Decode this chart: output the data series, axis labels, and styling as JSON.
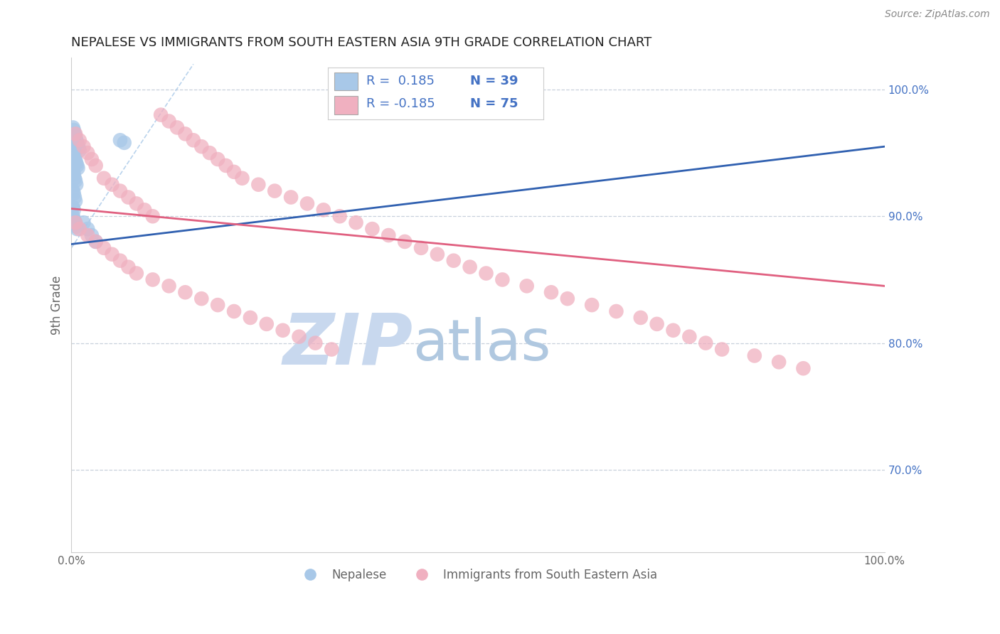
{
  "title": "NEPALESE VS IMMIGRANTS FROM SOUTH EASTERN ASIA 9TH GRADE CORRELATION CHART",
  "source_text": "Source: ZipAtlas.com",
  "ylabel": "9th Grade",
  "watermark_zip": "ZIP",
  "watermark_atlas": "atlas",
  "blue_color": "#a8c8e8",
  "blue_line_color": "#3060b0",
  "pink_color": "#f0b0c0",
  "pink_line_color": "#e06080",
  "dashed_line_color": "#c8d0dc",
  "right_axis_color": "#4472c4",
  "tick_label_color": "#666666",
  "axis_label_color": "#666666",
  "title_color": "#222222",
  "source_color": "#888888",
  "watermark_zip_color": "#c8d8ee",
  "watermark_atlas_color": "#b0c8e0",
  "xlim": [
    0.0,
    1.0
  ],
  "ylim": [
    0.635,
    1.025
  ],
  "dashed_line_y": [
    1.0,
    0.9,
    0.8,
    0.7
  ],
  "blue_line_x0": 0.0,
  "blue_line_x1": 1.0,
  "blue_line_y0": 0.878,
  "blue_line_y1": 0.955,
  "pink_line_x0": 0.0,
  "pink_line_x1": 1.0,
  "pink_line_y0": 0.906,
  "pink_line_y1": 0.845,
  "blue_scatter_x": [
    0.002,
    0.003,
    0.004,
    0.005,
    0.006,
    0.007,
    0.008,
    0.009,
    0.01,
    0.002,
    0.003,
    0.004,
    0.005,
    0.006,
    0.007,
    0.008,
    0.002,
    0.003,
    0.004,
    0.005,
    0.006,
    0.002,
    0.003,
    0.004,
    0.005,
    0.002,
    0.003,
    0.015,
    0.02,
    0.025,
    0.03,
    0.06,
    0.065,
    0.002,
    0.003,
    0.004,
    0.005,
    0.006,
    0.007
  ],
  "blue_scatter_y": [
    0.97,
    0.968,
    0.965,
    0.963,
    0.96,
    0.958,
    0.956,
    0.954,
    0.952,
    0.95,
    0.948,
    0.946,
    0.944,
    0.942,
    0.94,
    0.938,
    0.935,
    0.933,
    0.93,
    0.928,
    0.925,
    0.92,
    0.918,
    0.915,
    0.912,
    0.907,
    0.905,
    0.895,
    0.89,
    0.885,
    0.88,
    0.96,
    0.958,
    0.9,
    0.898,
    0.896,
    0.894,
    0.892,
    0.89
  ],
  "pink_scatter_x": [
    0.005,
    0.01,
    0.015,
    0.02,
    0.025,
    0.03,
    0.04,
    0.05,
    0.06,
    0.07,
    0.08,
    0.09,
    0.1,
    0.11,
    0.12,
    0.13,
    0.14,
    0.15,
    0.16,
    0.17,
    0.18,
    0.19,
    0.2,
    0.21,
    0.23,
    0.25,
    0.27,
    0.29,
    0.31,
    0.33,
    0.35,
    0.37,
    0.39,
    0.41,
    0.43,
    0.45,
    0.47,
    0.49,
    0.51,
    0.53,
    0.56,
    0.59,
    0.61,
    0.64,
    0.67,
    0.7,
    0.72,
    0.74,
    0.76,
    0.78,
    0.8,
    0.84,
    0.87,
    0.9,
    0.005,
    0.01,
    0.02,
    0.03,
    0.04,
    0.05,
    0.06,
    0.07,
    0.08,
    0.1,
    0.12,
    0.14,
    0.16,
    0.18,
    0.2,
    0.22,
    0.24,
    0.26,
    0.28,
    0.3,
    0.32
  ],
  "pink_scatter_y": [
    0.965,
    0.96,
    0.955,
    0.95,
    0.945,
    0.94,
    0.93,
    0.925,
    0.92,
    0.915,
    0.91,
    0.905,
    0.9,
    0.98,
    0.975,
    0.97,
    0.965,
    0.96,
    0.955,
    0.95,
    0.945,
    0.94,
    0.935,
    0.93,
    0.925,
    0.92,
    0.915,
    0.91,
    0.905,
    0.9,
    0.895,
    0.89,
    0.885,
    0.88,
    0.875,
    0.87,
    0.865,
    0.86,
    0.855,
    0.85,
    0.845,
    0.84,
    0.835,
    0.83,
    0.825,
    0.82,
    0.815,
    0.81,
    0.805,
    0.8,
    0.795,
    0.79,
    0.785,
    0.78,
    0.895,
    0.89,
    0.885,
    0.88,
    0.875,
    0.87,
    0.865,
    0.86,
    0.855,
    0.85,
    0.845,
    0.84,
    0.835,
    0.83,
    0.825,
    0.82,
    0.815,
    0.81,
    0.805,
    0.8,
    0.795
  ]
}
